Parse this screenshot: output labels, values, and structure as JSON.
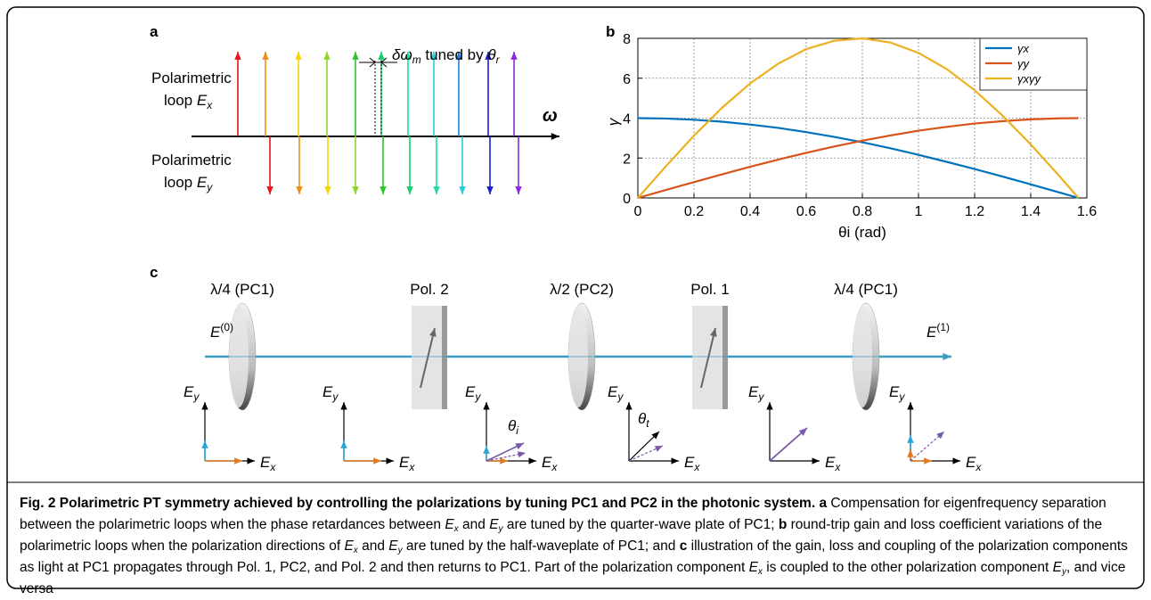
{
  "panel_a": {
    "label": "a",
    "annotation": {
      "delta": "δω",
      "delta_sub": "m",
      "text": " tuned by ",
      "theta": "θ",
      "theta_sub": "r"
    },
    "axis_label": "ω",
    "loop_x": {
      "line1": "Polarimetric",
      "line2": "loop ",
      "var": "E",
      "sub": "x"
    },
    "loop_y": {
      "line1": "Polarimetric",
      "line2": "loop ",
      "var": "E",
      "sub": "y"
    }
  },
  "chart_data": {
    "type": "line",
    "label": "b",
    "xlabel": "θi (rad)",
    "ylabel": "γ",
    "x": [
      0,
      0.1,
      0.2,
      0.3,
      0.4,
      0.5,
      0.6,
      0.7,
      0.8,
      0.9,
      1.0,
      1.1,
      1.2,
      1.3,
      1.4,
      1.5,
      1.57
    ],
    "series": [
      {
        "name": "γx",
        "color": "#0072bd",
        "values": [
          4,
          3.98,
          3.92,
          3.82,
          3.68,
          3.51,
          3.3,
          3.06,
          2.79,
          2.49,
          2.16,
          1.81,
          1.45,
          1.07,
          0.68,
          0.28,
          0
        ]
      },
      {
        "name": "γy",
        "color": "#d95319",
        "values": [
          0,
          0.4,
          0.79,
          1.18,
          1.56,
          1.92,
          2.26,
          2.58,
          2.87,
          3.13,
          3.37,
          3.56,
          3.73,
          3.85,
          3.94,
          3.99,
          4
        ]
      },
      {
        "name": "γxγy",
        "color": "#edb120",
        "values": [
          0,
          1.59,
          3.12,
          4.52,
          5.74,
          6.73,
          7.46,
          7.88,
          8.0,
          7.79,
          7.27,
          6.47,
          5.4,
          4.12,
          2.68,
          1.13,
          0
        ]
      }
    ],
    "xlim": [
      0,
      1.6
    ],
    "ylim": [
      0,
      8
    ],
    "xticks": [
      0,
      0.2,
      0.4,
      0.6,
      0.8,
      1,
      1.2,
      1.4,
      1.6
    ],
    "yticks": [
      0,
      2,
      4,
      6,
      8
    ],
    "grid": true,
    "legend": "top-right"
  },
  "panel_c": {
    "label": "c",
    "components": [
      "λ/4 (PC1)",
      "Pol. 2",
      "λ/2 (PC2)",
      "Pol. 1",
      "λ/4 (PC1)"
    ],
    "input": {
      "var": "E",
      "sup": "(0)"
    },
    "output": {
      "var": "E",
      "sup": "(1)"
    },
    "frames": [
      {
        "y_var": "E",
        "y_sub": "y",
        "x_var": "E",
        "x_sub": "x"
      },
      {
        "y_var": "E",
        "y_sub": "y",
        "x_var": "E",
        "x_sub": "x"
      },
      {
        "y_var": "E",
        "y_sub": "y",
        "x_var": "E",
        "x_sub": "x",
        "angle": "θ",
        "angle_sub": "i"
      },
      {
        "y_var": "E",
        "y_sub": "y",
        "x_var": "E",
        "x_sub": "x",
        "angle": "θ",
        "angle_sub": "t"
      },
      {
        "y_var": "E",
        "y_sub": "y",
        "x_var": "E",
        "x_sub": "x"
      },
      {
        "y_var": "E",
        "y_sub": "y",
        "x_var": "E",
        "x_sub": "x"
      }
    ]
  },
  "caption": {
    "segments": [
      "Fig. 2 Polarimetric PT symmetry achieved by controlling the polarizations by tuning PC1 and PC2 in the photonic system.",
      "a",
      " Compensation for eigenfrequency separation between the polarimetric loops when the phase retardances between ",
      "E",
      "x",
      " and ",
      "E",
      "y",
      " are tuned by the quarter-wave plate of PC1; ",
      "b",
      " round-trip gain and loss coefficient variations of the polarimetric loops when the polarization directions of ",
      "E",
      "x",
      " and ",
      "E",
      "y",
      " are tuned by the half-waveplate of PC1; and ",
      "c",
      " illustration of the gain, loss and coupling of the polarization components as light at PC1 propagates through Pol. 1, PC2, and Pol. 2 and then returns to PC1. Part of the polarization component ",
      "E",
      "x",
      " is coupled to the other polarization component ",
      "E",
      "y",
      ", and vice versa"
    ]
  }
}
